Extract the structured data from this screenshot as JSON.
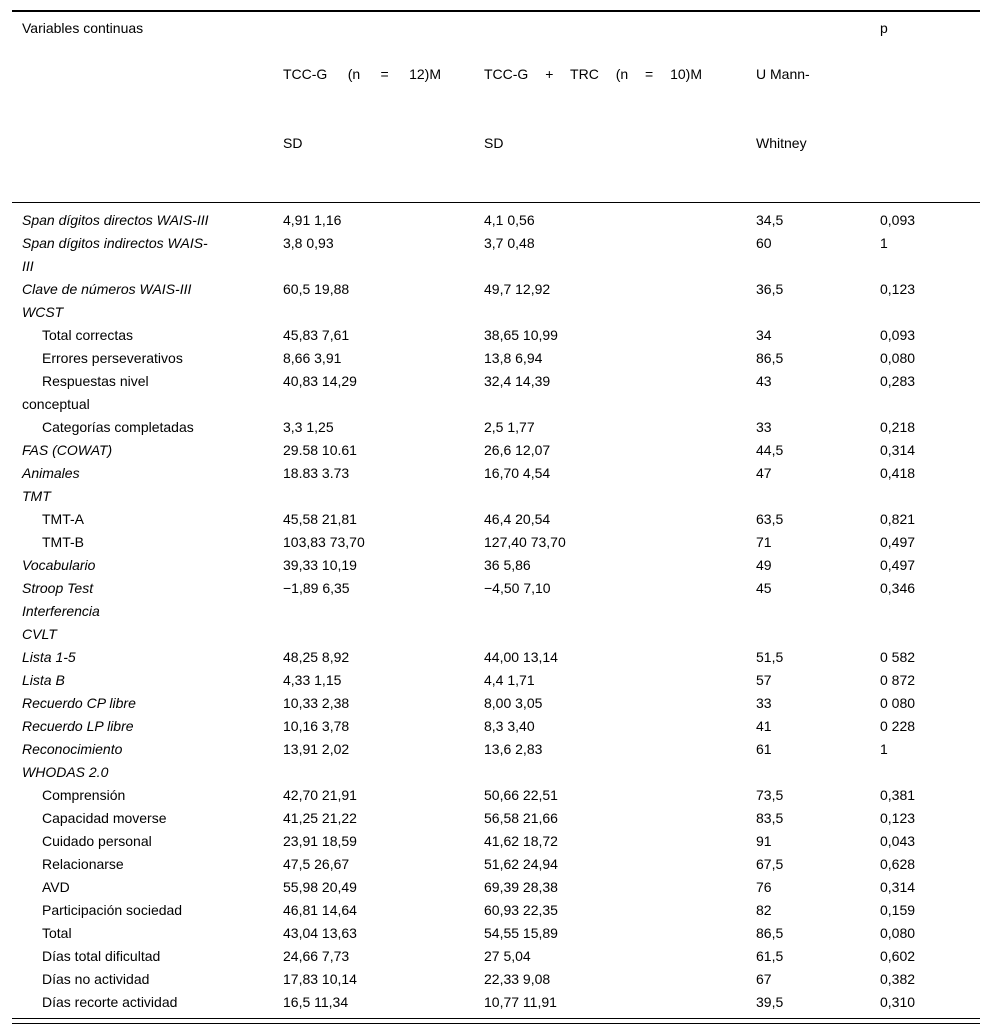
{
  "table": {
    "header": {
      "col1": "Variables continuas",
      "col2_line1": "TCC-G (n = 12)M",
      "col2_line2": "SD",
      "col3_line1": "TCC-G + TRC (n = 10)M",
      "col3_line2": "SD",
      "col4_line1": "U Mann-",
      "col4_line2": "Whitney",
      "col5": "p"
    },
    "rows": [
      {
        "lines": [
          "Span dígitos directos WAIS-III"
        ],
        "italic": true,
        "indent": false,
        "v": [
          "4,91 1,16",
          "4,1 0,56",
          "34,5",
          "0,093"
        ]
      },
      {
        "lines": [
          "Span dígitos indirectos WAIS-",
          "III"
        ],
        "italic": true,
        "indent": false,
        "v": [
          "3,8 0,93",
          "3,7 0,48",
          "60",
          "1"
        ]
      },
      {
        "lines": [
          "Clave de números WAIS-III"
        ],
        "italic": true,
        "indent": false,
        "v": [
          "60,5 19,88",
          "49,7 12,92",
          "36,5",
          "0,123"
        ]
      },
      {
        "lines": [
          "WCST"
        ],
        "italic": true,
        "indent": false,
        "v": [
          "",
          "",
          "",
          ""
        ]
      },
      {
        "lines": [
          "Total correctas"
        ],
        "italic": false,
        "indent": true,
        "v": [
          "45,83 7,61",
          "38,65 10,99",
          "34",
          "0,093"
        ]
      },
      {
        "lines": [
          "Errores perseverativos"
        ],
        "italic": false,
        "indent": true,
        "v": [
          "8,66 3,91",
          "13,8 6,94",
          "86,5",
          "0,080"
        ]
      },
      {
        "lines": [
          "Respuestas nivel",
          "conceptual"
        ],
        "italic": false,
        "indent": true,
        "v": [
          "40,83 14,29",
          "32,4 14,39",
          "43",
          "0,283"
        ]
      },
      {
        "lines": [
          "Categorías completadas"
        ],
        "italic": false,
        "indent": true,
        "v": [
          "3,3 1,25",
          "2,5 1,77",
          "33",
          "0,218"
        ]
      },
      {
        "lines": [
          "FAS (COWAT)"
        ],
        "italic": true,
        "indent": false,
        "v": [
          "29.58 10.61",
          "26,6 12,07",
          "44,5",
          "0,314"
        ]
      },
      {
        "lines": [
          "Animales"
        ],
        "italic": true,
        "indent": false,
        "v": [
          "18.83 3.73",
          "16,70 4,54",
          "47",
          "0,418"
        ]
      },
      {
        "lines": [
          "TMT"
        ],
        "italic": true,
        "indent": false,
        "v": [
          "",
          "",
          "",
          ""
        ]
      },
      {
        "lines": [
          "TMT-A"
        ],
        "italic": false,
        "indent": true,
        "v": [
          "45,58 21,81",
          "46,4 20,54",
          "63,5",
          "0,821"
        ]
      },
      {
        "lines": [
          "TMT-B"
        ],
        "italic": false,
        "indent": true,
        "v": [
          "103,83 73,70",
          "127,40 73,70",
          "71",
          "0,497"
        ]
      },
      {
        "lines": [
          "Vocabulario"
        ],
        "italic": true,
        "indent": false,
        "v": [
          "39,33 10,19",
          "36 5,86",
          "49",
          "0,497"
        ]
      },
      {
        "lines": [
          "Stroop Test",
          "Interferencia"
        ],
        "italic": true,
        "indent": false,
        "v": [
          "−1,89 6,35",
          "−4,50 7,10",
          "45",
          "0,346"
        ]
      },
      {
        "lines": [
          "CVLT"
        ],
        "italic": true,
        "indent": false,
        "v": [
          "",
          "",
          "",
          ""
        ]
      },
      {
        "lines": [
          "Lista 1-5"
        ],
        "italic": true,
        "indent": false,
        "v": [
          "48,25 8,92",
          "44,00 13,14",
          "51,5",
          "0 582"
        ]
      },
      {
        "lines": [
          "Lista B"
        ],
        "italic": true,
        "indent": false,
        "v": [
          "4,33 1,15",
          "4,4 1,71",
          "57",
          "0 872"
        ]
      },
      {
        "lines": [
          "Recuerdo CP libre"
        ],
        "italic": true,
        "indent": false,
        "v": [
          "10,33 2,38",
          "8,00 3,05",
          "33",
          "0 080"
        ]
      },
      {
        "lines": [
          "Recuerdo LP libre"
        ],
        "italic": true,
        "indent": false,
        "v": [
          "10,16 3,78",
          "8,3 3,40",
          "41",
          "0 228"
        ]
      },
      {
        "lines": [
          "Reconocimiento"
        ],
        "italic": true,
        "indent": false,
        "v": [
          "13,91 2,02",
          "13,6 2,83",
          "61",
          "1"
        ]
      },
      {
        "lines": [
          "WHODAS 2.0"
        ],
        "italic": true,
        "indent": false,
        "v": [
          "",
          "",
          "",
          ""
        ]
      },
      {
        "lines": [
          "Comprensión"
        ],
        "italic": false,
        "indent": true,
        "v": [
          "42,70 21,91",
          "50,66 22,51",
          "73,5",
          "0,381"
        ]
      },
      {
        "lines": [
          "Capacidad moverse"
        ],
        "italic": false,
        "indent": true,
        "v": [
          "41,25 21,22",
          "56,58 21,66",
          "83,5",
          "0,123"
        ]
      },
      {
        "lines": [
          "Cuidado personal"
        ],
        "italic": false,
        "indent": true,
        "v": [
          "23,91 18,59",
          "41,62 18,72",
          "91",
          "0,043"
        ]
      },
      {
        "lines": [
          "Relacionarse"
        ],
        "italic": false,
        "indent": true,
        "v": [
          "47,5 26,67",
          "51,62 24,94",
          "67,5",
          "0,628"
        ]
      },
      {
        "lines": [
          "AVD"
        ],
        "italic": false,
        "indent": true,
        "v": [
          "55,98 20,49",
          "69,39 28,38",
          "76",
          "0,314"
        ]
      },
      {
        "lines": [
          "Participación sociedad"
        ],
        "italic": false,
        "indent": true,
        "v": [
          "46,81 14,64",
          "60,93 22,35",
          "82",
          "0,159"
        ]
      },
      {
        "lines": [
          "Total"
        ],
        "italic": false,
        "indent": true,
        "v": [
          "43,04 13,63",
          "54,55 15,89",
          "86,5",
          "0,080"
        ]
      },
      {
        "lines": [
          "Días total dificultad"
        ],
        "italic": false,
        "indent": true,
        "v": [
          "24,66 7,73",
          "27 5,04",
          "61,5",
          "0,602"
        ]
      },
      {
        "lines": [
          "Días no actividad"
        ],
        "italic": false,
        "indent": true,
        "v": [
          "17,83 10,14",
          "22,33 9,08",
          "67",
          "0,382"
        ]
      },
      {
        "lines": [
          "Días recorte actividad"
        ],
        "italic": false,
        "indent": true,
        "v": [
          "16,5 11,34",
          "10,77 11,91",
          "39,5",
          "0,310"
        ]
      }
    ]
  }
}
